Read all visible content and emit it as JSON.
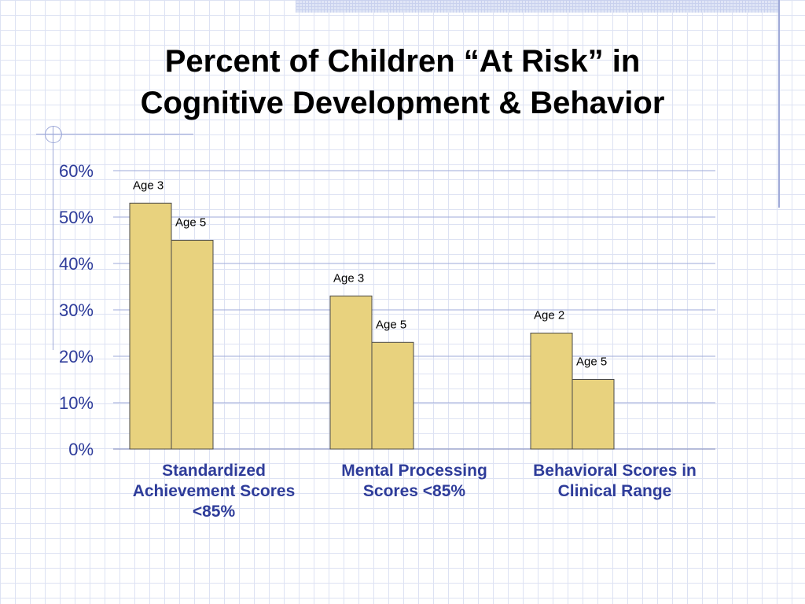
{
  "title_line1": "Percent of Children “At Risk” in",
  "title_line2": "Cognitive Development & Behavior",
  "chart_data": {
    "type": "bar",
    "title": "Percent of Children “At Risk” in Cognitive Development & Behavior",
    "categories": [
      "Standardized Achievement Scores <85%",
      "Mental Processing Scores <85%",
      "Behavioral Scores in Clinical Range"
    ],
    "groups": [
      {
        "category": "Standardized Achievement Scores <85%",
        "bars": [
          {
            "label": "Age 3",
            "value": 53
          },
          {
            "label": "Age 5",
            "value": 45
          }
        ]
      },
      {
        "category": "Mental Processing Scores <85%",
        "bars": [
          {
            "label": "Age 3",
            "value": 33
          },
          {
            "label": "Age 5",
            "value": 23
          }
        ]
      },
      {
        "category": "Behavioral Scores in Clinical Range",
        "bars": [
          {
            "label": "Age 2",
            "value": 25
          },
          {
            "label": "Age 5",
            "value": 15
          }
        ]
      }
    ],
    "y_ticks": [
      "0%",
      "10%",
      "20%",
      "30%",
      "40%",
      "50%",
      "60%"
    ],
    "ylim": [
      0,
      60
    ],
    "grid": true,
    "bar_color": "#e8d27e",
    "bar_stroke": "#4a4a4a",
    "tick_color": "#2e3c9a",
    "category_color": "#2e3c9a"
  }
}
